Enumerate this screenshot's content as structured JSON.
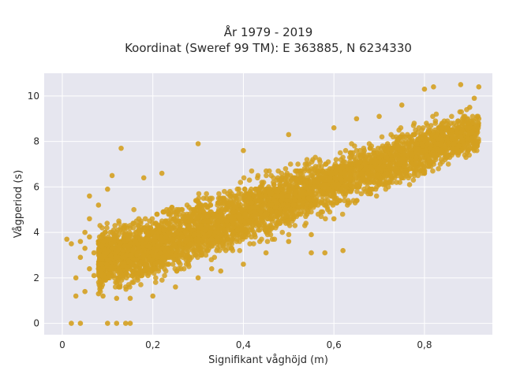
{
  "chart_data": {
    "type": "scatter",
    "title_line1": "År 1979 - 2019",
    "title_line2": "Koordinat (Sweref 99 TM): E 363885, N 6234330",
    "xlabel": "Signifikant våghöjd (m)",
    "ylabel": "Vågperiod (s)",
    "xlim": [
      -0.04,
      0.95
    ],
    "ylim": [
      -0.5,
      11.0
    ],
    "xticks": [
      0,
      0.2,
      0.4,
      0.6,
      0.8
    ],
    "xtick_labels": [
      "0",
      "0,2",
      "0,4",
      "0,6",
      "0,8"
    ],
    "yticks": [
      0,
      2,
      4,
      6,
      8,
      10
    ],
    "ytick_labels": [
      "0",
      "2",
      "4",
      "6",
      "8",
      "10"
    ],
    "grid": true,
    "marker_color": "#D4A020",
    "plot_bg": "#E6E6EF",
    "points_summary": "Dense point cloud; wave period rises roughly linearly from ~1–4 s at 0.05–0.15 m to ~6–10 s at 0.9 m",
    "points": [
      [
        0.01,
        3.7
      ],
      [
        0.02,
        3.5
      ],
      [
        0.03,
        1.2
      ],
      [
        0.03,
        2.0
      ],
      [
        0.04,
        2.9
      ],
      [
        0.04,
        3.6
      ],
      [
        0.05,
        1.4
      ],
      [
        0.05,
        3.3
      ],
      [
        0.06,
        2.4
      ],
      [
        0.06,
        3.8
      ],
      [
        0.06,
        5.6
      ],
      [
        0.07,
        3.1
      ],
      [
        0.07,
        2.1
      ],
      [
        0.02,
        0.0
      ],
      [
        0.04,
        0.0
      ],
      [
        0.1,
        0.0
      ],
      [
        0.12,
        0.0
      ],
      [
        0.14,
        0.0
      ],
      [
        0.15,
        0.0
      ],
      [
        0.08,
        1.3
      ],
      [
        0.09,
        1.2
      ],
      [
        0.1,
        5.9
      ],
      [
        0.11,
        6.5
      ],
      [
        0.13,
        7.7
      ],
      [
        0.18,
        6.4
      ],
      [
        0.22,
        6.6
      ],
      [
        0.3,
        7.9
      ],
      [
        0.4,
        7.6
      ],
      [
        0.5,
        8.3
      ],
      [
        0.6,
        8.6
      ],
      [
        0.65,
        9.0
      ],
      [
        0.7,
        9.1
      ],
      [
        0.75,
        9.6
      ],
      [
        0.8,
        10.3
      ],
      [
        0.82,
        10.4
      ],
      [
        0.88,
        10.5
      ],
      [
        0.92,
        10.4
      ],
      [
        0.91,
        9.9
      ],
      [
        0.9,
        9.5
      ],
      [
        0.92,
        9.0
      ],
      [
        0.88,
        8.2
      ],
      [
        0.85,
        7.3
      ],
      [
        0.8,
        6.6
      ],
      [
        0.75,
        6.4
      ],
      [
        0.7,
        6.2
      ],
      [
        0.65,
        5.4
      ],
      [
        0.6,
        4.6
      ],
      [
        0.55,
        3.9
      ],
      [
        0.5,
        3.6
      ],
      [
        0.45,
        3.1
      ],
      [
        0.4,
        2.6
      ],
      [
        0.35,
        2.3
      ],
      [
        0.3,
        2.0
      ],
      [
        0.25,
        1.6
      ],
      [
        0.2,
        1.2
      ],
      [
        0.15,
        1.1
      ],
      [
        0.12,
        1.1
      ],
      [
        0.33,
        2.4
      ],
      [
        0.55,
        3.1
      ],
      [
        0.58,
        3.1
      ],
      [
        0.62,
        3.2
      ],
      [
        0.05,
        4.0
      ],
      [
        0.08,
        5.2
      ],
      [
        0.06,
        4.6
      ]
    ]
  }
}
